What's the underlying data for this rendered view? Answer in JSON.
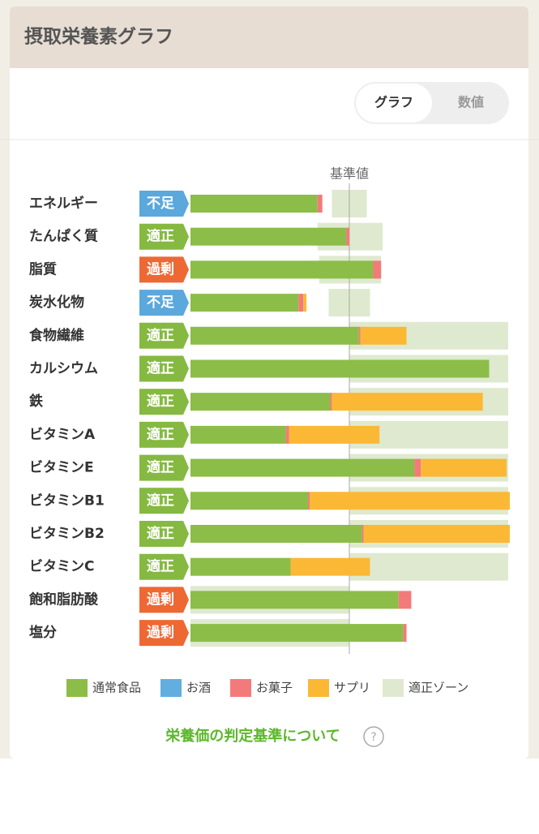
{
  "header": {
    "title": "摂取栄養素グラフ"
  },
  "toggle": {
    "options": [
      "グラフ",
      "数値"
    ]
  },
  "chart_data": {
    "type": "stacked-bar",
    "categories": [
      "エネルギー",
      "たんぱく質",
      "脂質",
      "炭水化物",
      "食物繊維",
      "カルシウム",
      "鉄",
      "ビタミンA",
      "ビタミンE",
      "ビタミンB1",
      "ビタミンB2",
      "ビタミンC",
      "飽和脂肪酸",
      "塩分"
    ],
    "statuses": [
      "不足",
      "適正",
      "過剰",
      "不足",
      "適正",
      "適正",
      "適正",
      "適正",
      "適正",
      "適正",
      "適正",
      "適正",
      "過剰",
      "過剰"
    ],
    "status_colors": [
      "#5aa8dc",
      "#85b941",
      "#ee6834",
      "#5aa8dc",
      "#85b941",
      "#85b941",
      "#85b941",
      "#85b941",
      "#85b941",
      "#85b941",
      "#85b941",
      "#85b941",
      "#ee6834",
      "#ee6834"
    ],
    "series": [
      {
        "name": "通常食品",
        "color": "#8cbd48",
        "values": [
          80,
          98,
          115,
          68,
          106,
          188,
          88,
          60,
          141,
          74,
          108,
          63,
          131,
          134
        ]
      },
      {
        "name": "お酒",
        "color": "#62aee0",
        "values": [
          0,
          0,
          0,
          0,
          0,
          0,
          0,
          0,
          0,
          0,
          0,
          0,
          0,
          0
        ]
      },
      {
        "name": "お菓子",
        "color": "#f37a7a",
        "values": [
          3,
          2,
          5,
          3,
          1,
          0,
          1,
          2,
          4,
          1,
          1,
          0,
          8,
          2
        ]
      },
      {
        "name": "サプリ",
        "color": "#fbb835",
        "values": [
          0,
          0,
          0,
          2,
          29,
          0,
          95,
          57,
          54,
          126,
          92,
          50,
          0,
          0
        ]
      }
    ],
    "zone": {
      "name": "適正ゾーン",
      "color": "#dfe9cf",
      "ranges": [
        [
          89,
          111
        ],
        [
          80,
          121
        ],
        [
          81,
          120
        ],
        [
          87,
          113
        ],
        [
          100,
          200
        ],
        [
          100,
          200
        ],
        [
          100,
          200
        ],
        [
          100,
          200
        ],
        [
          100,
          200
        ],
        [
          100,
          200
        ],
        [
          100,
          200
        ],
        [
          100,
          200
        ],
        [
          0,
          100
        ],
        [
          0,
          100
        ]
      ]
    },
    "reference": {
      "label": "基準値",
      "value": 100
    },
    "xlim": [
      0,
      200
    ]
  },
  "footer": {
    "link": "栄養価の判定基準について"
  }
}
